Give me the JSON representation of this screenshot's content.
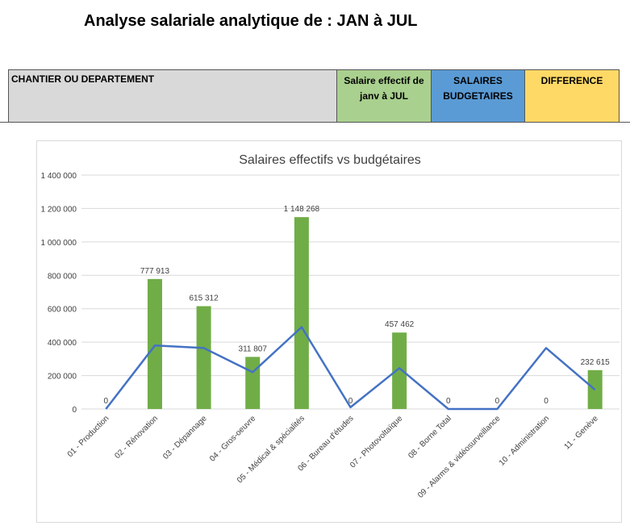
{
  "page": {
    "title": "Analyse salariale analytique de :  JAN à JUL"
  },
  "header": {
    "col_dept": "CHANTIER OU DEPARTEMENT",
    "col_effective_line1": "Salaire effectif de",
    "col_effective_line2": "janv à JUL",
    "col_budget_line1": "SALAIRES",
    "col_budget_line2": "BUDGETAIRES",
    "col_diff": "DIFFERENCE"
  },
  "colors": {
    "bar": "#70ad47",
    "line": "#4472c4",
    "header_dept": "#d9d9d9",
    "header_effective": "#a9d08e",
    "header_budget": "#5b9bd5",
    "header_diff": "#ffd966"
  },
  "chart_data": {
    "type": "bar",
    "title": "Salaires effectifs vs budgétaires",
    "categories": [
      "01 - Production",
      "02 - Rénovation",
      "03 - Dépannage",
      "04 - Gros-oeuvre",
      "05 - Médical & spécialités",
      "06 - Bureau d'études",
      "07 - Photovoltaïque",
      "08 - Borne Total",
      "09 - Alarms & vidéosurveillance",
      "10 - Administration",
      "11 - Genève"
    ],
    "series": [
      {
        "type": "bar",
        "values": [
          0,
          777913,
          615312,
          311807,
          1148268,
          0,
          457462,
          0,
          0,
          0,
          232615
        ],
        "data_labels": [
          "0",
          "777 913",
          "615 312",
          "311 807",
          "1 148 268",
          "0",
          "457 462",
          "0",
          "0",
          "0",
          "232 615"
        ]
      },
      {
        "type": "line",
        "values": [
          0,
          380000,
          365000,
          220000,
          490000,
          10000,
          245000,
          0,
          0,
          365000,
          115000
        ]
      }
    ],
    "ylim": [
      0,
      1400000
    ],
    "yticks": [
      0,
      200000,
      400000,
      600000,
      800000,
      1000000,
      1200000,
      1400000
    ],
    "ytick_labels": [
      "0",
      "200 000",
      "400 000",
      "600 000",
      "800 000",
      "1 000 000",
      "1 200 000",
      "1 400 000"
    ],
    "grid": true,
    "legend": "none"
  }
}
